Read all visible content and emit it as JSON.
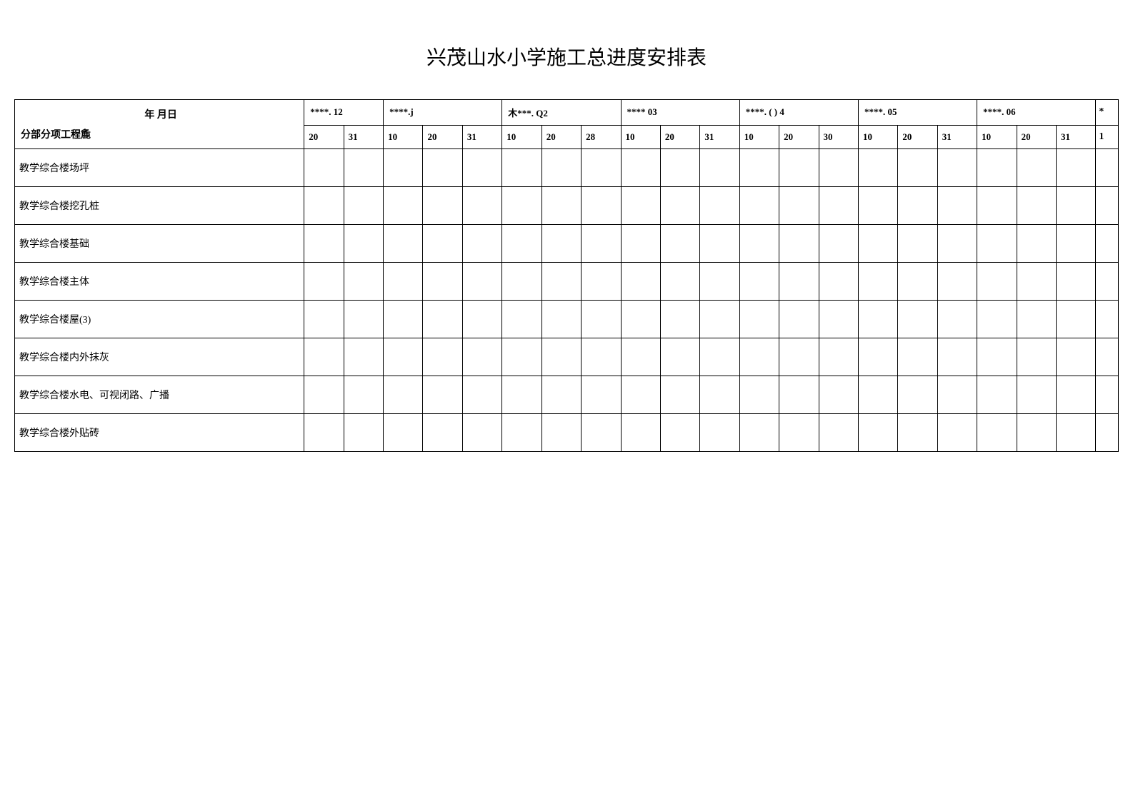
{
  "title": "兴茂山水小学施工总进度安排表",
  "header": {
    "top_text": "年 月日",
    "bottom_text": "分部分项工程麁"
  },
  "months": [
    {
      "label": "****. 12",
      "days": [
        "20",
        "31"
      ]
    },
    {
      "label": "****.j",
      "days": [
        "10",
        "20",
        "31"
      ]
    },
    {
      "label": "木***. Q2",
      "days": [
        "10",
        "20",
        "28"
      ]
    },
    {
      "label": "**** 03",
      "days": [
        "10",
        "20",
        "31"
      ]
    },
    {
      "label": "****. ( ) 4",
      "days": [
        "10",
        "20",
        "30"
      ]
    },
    {
      "label": "****. 05",
      "days": [
        "10",
        "20",
        "31"
      ]
    },
    {
      "label": "****. 06",
      "days": [
        "10",
        "20",
        "31"
      ]
    }
  ],
  "last_col_top": "*",
  "last_col_bottom": "1",
  "rows": [
    "教学综合楼场坪",
    "教学综合楼挖孔桩",
    "教学综合楼基础",
    "教学综合楼主体",
    "教学综合楼屋(3)",
    "教学综合楼内外抹灰",
    "教学综合楼水电、可视闭路、广播",
    "教学综合楼外贴砖"
  ],
  "colors": {
    "border": "#000000",
    "background": "#ffffff",
    "text": "#000000"
  },
  "fonts": {
    "title_size": 28,
    "body_size": 14
  }
}
